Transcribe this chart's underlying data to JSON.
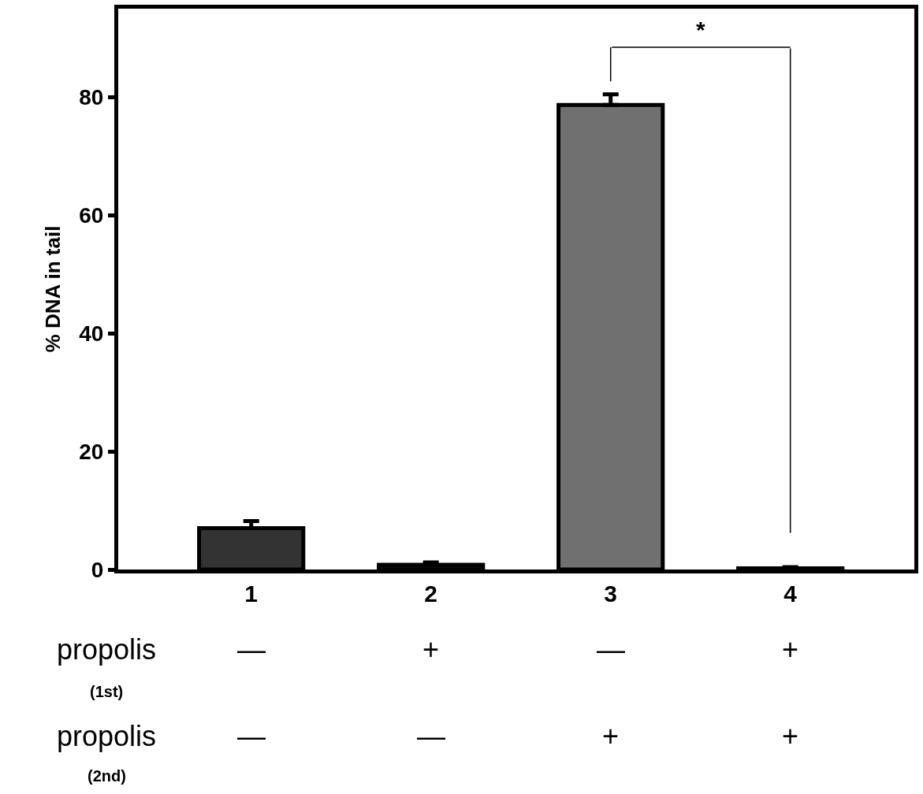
{
  "chart_data": {
    "type": "bar",
    "ylabel": "% DNA in tail",
    "categories": [
      "1",
      "2",
      "3",
      "4"
    ],
    "values": [
      7.0,
      0.8,
      78.7,
      0.2
    ],
    "colors": [
      "#333333",
      "#111111",
      "#707070",
      "#222222"
    ],
    "errors": [
      [
        7.0,
        8.2
      ],
      [
        0.8,
        1.2
      ],
      [
        78.7,
        80.5
      ],
      [
        0.2,
        0.4
      ]
    ],
    "ylim": [
      0,
      95
    ],
    "yticks": [
      0,
      20,
      40,
      60,
      80
    ],
    "annotations": [
      "*",
      "propolis",
      "(1st)",
      "propolis",
      "(2nd)",
      "—",
      "+",
      "—",
      "+",
      "—",
      "—",
      "+",
      "+"
    ]
  }
}
